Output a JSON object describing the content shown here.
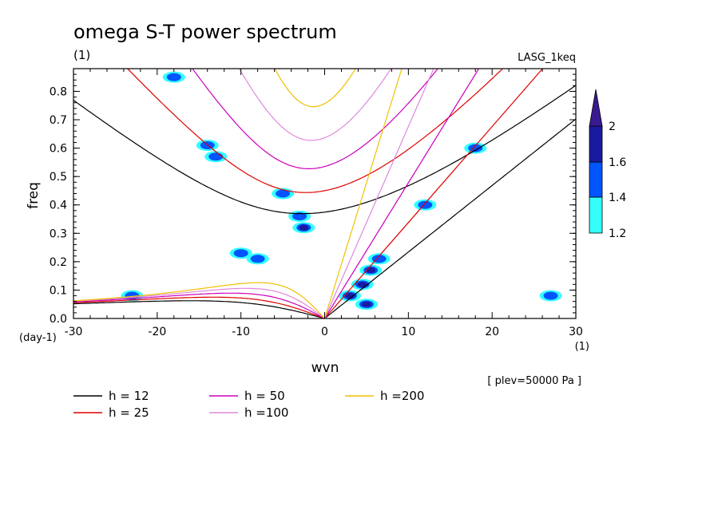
{
  "chart_data": {
    "type": "line",
    "title": "omega S-T power spectrum",
    "subtitle": "(1)",
    "model_label": "LASG_1keq",
    "xlabel": "wvn",
    "ylabel": "freq",
    "x_unit": "(1)",
    "y_unit": "(day-1)",
    "xlim": [
      -30,
      30
    ],
    "ylim": [
      0,
      0.88
    ],
    "x_ticks": [
      "-30",
      "-20",
      "-10",
      "0",
      "10",
      "20",
      "30"
    ],
    "y_ticks": [
      "0.0",
      "0.1",
      "0.2",
      "0.3",
      "0.4",
      "0.5",
      "0.6",
      "0.7",
      "0.8"
    ],
    "level_note": "[ plev=50000 Pa ]",
    "colorbar": {
      "levels": [
        "1.2",
        "1.4",
        "1.6",
        "2"
      ],
      "colors": [
        "#33ffff",
        "#0055ff",
        "#1a1aa0",
        "#3a1a90"
      ]
    },
    "series": [
      {
        "name": "h = 12",
        "color": "#000000",
        "h": 12
      },
      {
        "name": "h = 25",
        "color": "#dd0000",
        "h": 25
      },
      {
        "name": "h = 50",
        "color": "#cc00bb",
        "h": 50
      },
      {
        "name": "h =100",
        "color": "#dd88dd",
        "h": 100
      },
      {
        "name": "h =200",
        "color": "#f0c000",
        "h": 200
      }
    ],
    "contour_blobs": [
      {
        "x": -2.5,
        "y": 0.32,
        "level": 2
      },
      {
        "x": -3.0,
        "y": 0.36,
        "level": 1
      },
      {
        "x": 3.0,
        "y": 0.08,
        "level": 2
      },
      {
        "x": 4.5,
        "y": 0.12,
        "level": 2
      },
      {
        "x": 5.5,
        "y": 0.17,
        "level": 2
      },
      {
        "x": 6.5,
        "y": 0.21,
        "level": 1
      },
      {
        "x": 5.0,
        "y": 0.05,
        "level": 2
      },
      {
        "x": 12.0,
        "y": 0.4,
        "level": 1
      },
      {
        "x": -14.0,
        "y": 0.61,
        "level": 1
      },
      {
        "x": -13.0,
        "y": 0.57,
        "level": 1
      },
      {
        "x": -8.0,
        "y": 0.21,
        "level": 1
      },
      {
        "x": -10.0,
        "y": 0.23,
        "level": 1
      },
      {
        "x": -23.0,
        "y": 0.08,
        "level": 1
      },
      {
        "x": 18.0,
        "y": 0.6,
        "level": 1
      },
      {
        "x": 27.0,
        "y": 0.08,
        "level": 1
      },
      {
        "x": -5.0,
        "y": 0.44,
        "level": 1
      },
      {
        "x": -18.0,
        "y": 0.85,
        "level": 1
      }
    ]
  }
}
